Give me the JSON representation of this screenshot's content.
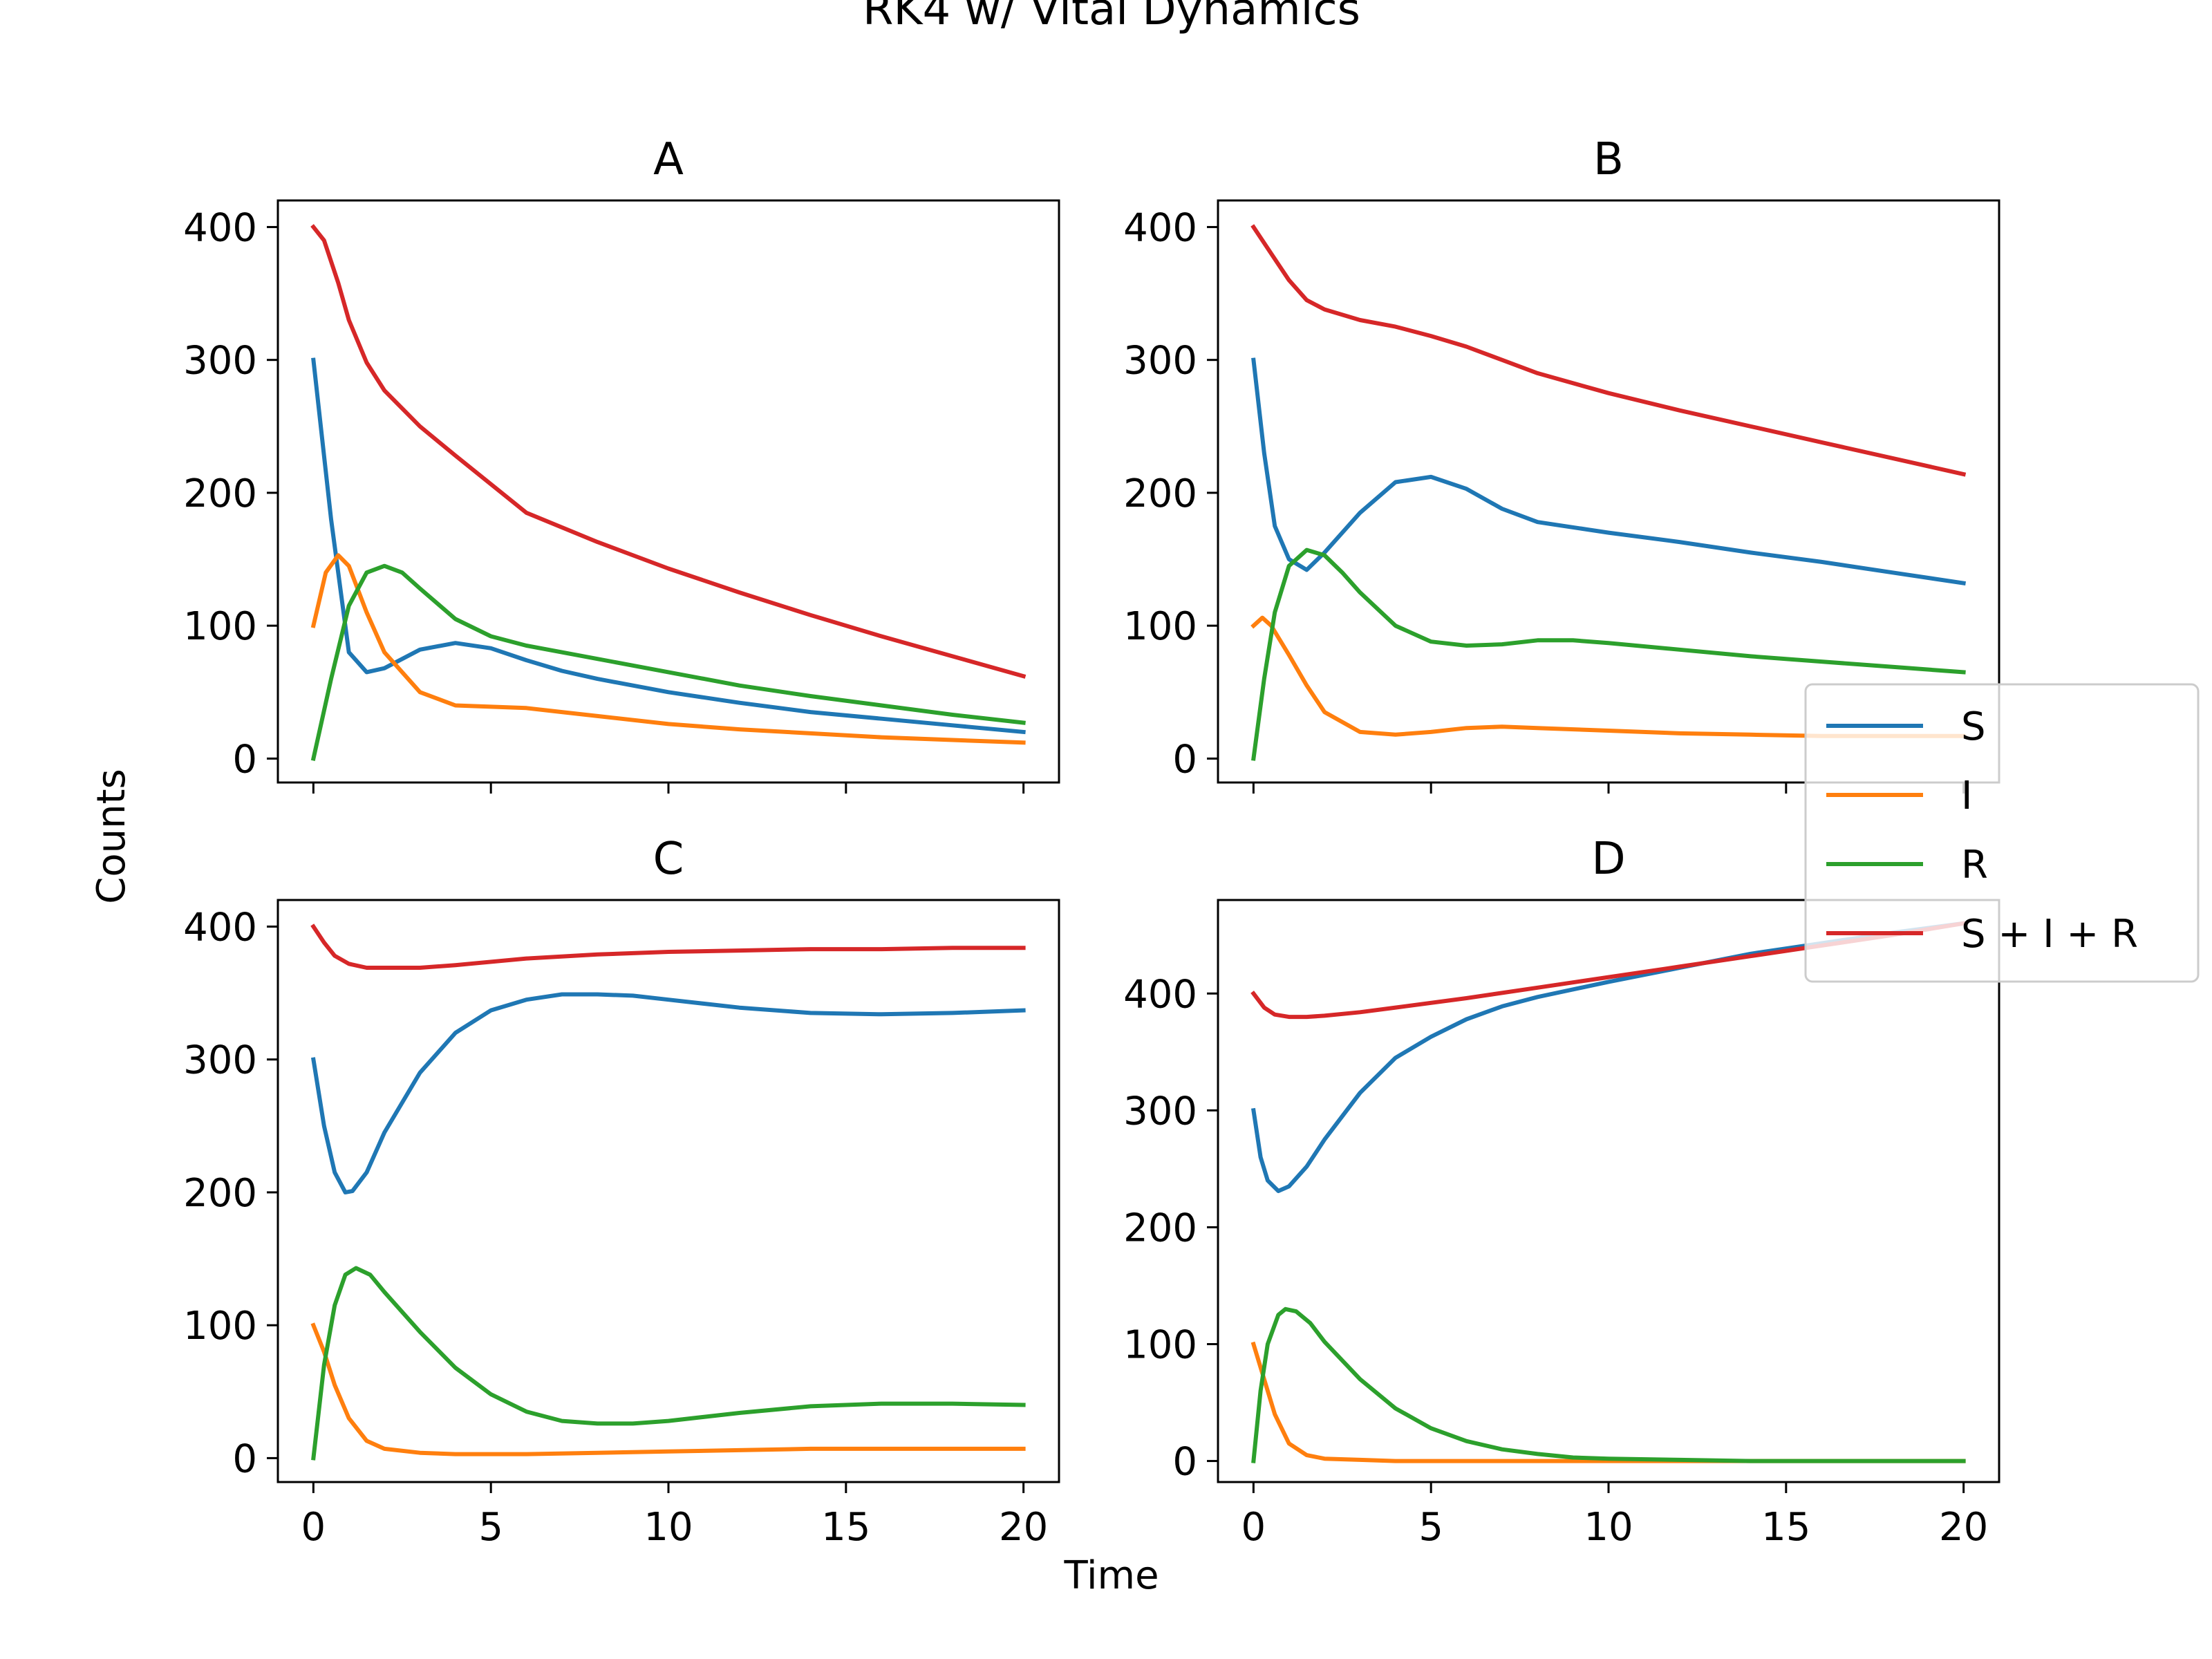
{
  "figure": {
    "title": "RK4 w/ Vital Dynamics",
    "xlabel": "Time",
    "ylabel": "Counts"
  },
  "colors": {
    "S": "#1f77b4",
    "I": "#ff7f0e",
    "R": "#2ca02c",
    "S + I + R": "#d62728"
  },
  "legend": {
    "placement": "right, overlapping panels B and D",
    "entries": [
      "S",
      "I",
      "R",
      "S + I + R"
    ]
  },
  "chart_data": [
    {
      "type": "line",
      "title": "A",
      "xlim": [
        -1,
        21
      ],
      "ylim": [
        -18,
        420
      ],
      "xticks": [
        0,
        5,
        10,
        15,
        20
      ],
      "yticks": [
        0,
        100,
        200,
        300,
        400
      ],
      "show_xticklabels": false,
      "grid": false,
      "series": [
        {
          "name": "S",
          "x": [
            0,
            0.5,
            1,
            1.5,
            2,
            3,
            4,
            5,
            6,
            7,
            8,
            10,
            12,
            14,
            16,
            18,
            20
          ],
          "y": [
            300,
            180,
            80,
            65,
            68,
            82,
            87,
            83,
            74,
            66,
            60,
            50,
            42,
            35,
            30,
            25,
            20
          ]
        },
        {
          "name": "I",
          "x": [
            0,
            0.35,
            0.7,
            1,
            1.5,
            2,
            3,
            4,
            5,
            6,
            7,
            8,
            10,
            12,
            14,
            16,
            18,
            20
          ],
          "y": [
            100,
            140,
            153,
            145,
            110,
            80,
            50,
            40,
            39,
            38,
            35,
            32,
            26,
            22,
            19,
            16,
            14,
            12
          ]
        },
        {
          "name": "R",
          "x": [
            0,
            0.5,
            1,
            1.5,
            2,
            2.5,
            3,
            4,
            5,
            6,
            8,
            10,
            12,
            14,
            16,
            18,
            20
          ],
          "y": [
            0,
            60,
            115,
            140,
            145,
            140,
            128,
            105,
            92,
            85,
            75,
            65,
            55,
            47,
            40,
            33,
            27
          ]
        },
        {
          "name": "S + I + R",
          "x": [
            0,
            0.3,
            0.7,
            1,
            1.5,
            2,
            3,
            4,
            6,
            8,
            10,
            12,
            14,
            16,
            18,
            20
          ],
          "y": [
            400,
            390,
            358,
            330,
            298,
            277,
            250,
            228,
            185,
            163,
            143,
            125,
            108,
            92,
            77,
            62
          ]
        }
      ]
    },
    {
      "type": "line",
      "title": "B",
      "xlim": [
        -1,
        21
      ],
      "ylim": [
        -18,
        420
      ],
      "xticks": [
        0,
        5,
        10,
        15,
        20
      ],
      "yticks": [
        0,
        100,
        200,
        300,
        400
      ],
      "show_xticklabels": false,
      "grid": false,
      "series": [
        {
          "name": "S",
          "x": [
            0,
            0.3,
            0.6,
            1,
            1.5,
            2,
            3,
            4,
            5,
            6,
            7,
            8,
            10,
            12,
            14,
            16,
            18,
            20
          ],
          "y": [
            300,
            230,
            175,
            150,
            142,
            155,
            185,
            208,
            212,
            203,
            188,
            178,
            170,
            163,
            155,
            148,
            140,
            132
          ]
        },
        {
          "name": "I",
          "x": [
            0,
            0.25,
            0.5,
            1,
            1.5,
            2,
            3,
            4,
            5,
            6,
            7,
            8,
            10,
            12,
            14,
            16,
            18,
            20
          ],
          "y": [
            100,
            106,
            100,
            78,
            55,
            35,
            20,
            18,
            20,
            23,
            24,
            23,
            21,
            19,
            18,
            17,
            17,
            17
          ]
        },
        {
          "name": "R",
          "x": [
            0,
            0.3,
            0.6,
            1,
            1.5,
            2,
            2.5,
            3,
            4,
            5,
            6,
            7,
            8,
            9,
            10,
            12,
            14,
            16,
            18,
            20
          ],
          "y": [
            0,
            60,
            110,
            145,
            157,
            153,
            140,
            125,
            100,
            88,
            85,
            86,
            89,
            89,
            87,
            82,
            77,
            73,
            69,
            65
          ]
        },
        {
          "name": "S + I + R",
          "x": [
            0,
            0.5,
            1,
            1.5,
            2,
            3,
            4,
            5,
            6,
            7,
            8,
            10,
            12,
            14,
            16,
            18,
            20
          ],
          "y": [
            400,
            380,
            360,
            345,
            338,
            330,
            325,
            318,
            310,
            300,
            290,
            275,
            262,
            250,
            238,
            226,
            214
          ]
        }
      ]
    },
    {
      "type": "line",
      "title": "C",
      "xlim": [
        -1,
        21
      ],
      "ylim": [
        -18,
        420
      ],
      "xticks": [
        0,
        5,
        10,
        15,
        20
      ],
      "yticks": [
        0,
        100,
        200,
        300,
        400
      ],
      "show_xticklabels": true,
      "grid": false,
      "series": [
        {
          "name": "S",
          "x": [
            0,
            0.3,
            0.6,
            0.9,
            1.1,
            1.5,
            2,
            3,
            4,
            5,
            6,
            7,
            8,
            9,
            10,
            12,
            14,
            16,
            18,
            20
          ],
          "y": [
            300,
            250,
            215,
            200,
            201,
            215,
            245,
            290,
            320,
            337,
            345,
            349,
            349,
            348,
            345,
            339,
            335,
            334,
            335,
            337
          ]
        },
        {
          "name": "I",
          "x": [
            0,
            0.3,
            0.6,
            1,
            1.5,
            2,
            3,
            4,
            6,
            8,
            10,
            12,
            14,
            16,
            18,
            20
          ],
          "y": [
            100,
            80,
            55,
            30,
            13,
            7,
            4,
            3,
            3,
            4,
            5,
            6,
            7,
            7,
            7,
            7
          ]
        },
        {
          "name": "R",
          "x": [
            0,
            0.3,
            0.6,
            0.9,
            1.2,
            1.6,
            2,
            3,
            4,
            5,
            6,
            7,
            8,
            9,
            10,
            12,
            14,
            16,
            18,
            20
          ],
          "y": [
            0,
            70,
            115,
            138,
            143,
            138,
            125,
            95,
            68,
            48,
            35,
            28,
            26,
            26,
            28,
            34,
            39,
            41,
            41,
            40
          ]
        },
        {
          "name": "S + I + R",
          "x": [
            0,
            0.3,
            0.6,
            1,
            1.5,
            2,
            3,
            4,
            6,
            8,
            10,
            12,
            14,
            16,
            18,
            20
          ],
          "y": [
            400,
            388,
            378,
            372,
            369,
            369,
            369,
            371,
            376,
            379,
            381,
            382,
            383,
            383,
            384,
            384
          ]
        }
      ]
    },
    {
      "type": "line",
      "title": "D",
      "xlim": [
        -1,
        21
      ],
      "ylim": [
        -18,
        480
      ],
      "xticks": [
        0,
        5,
        10,
        15,
        20
      ],
      "yticks": [
        0,
        100,
        200,
        300,
        400
      ],
      "show_xticklabels": true,
      "grid": false,
      "series": [
        {
          "name": "S",
          "x": [
            0,
            0.2,
            0.4,
            0.7,
            1,
            1.5,
            2,
            3,
            4,
            5,
            6,
            7,
            8,
            10,
            12,
            14,
            16,
            18,
            20
          ],
          "y": [
            300,
            260,
            240,
            231,
            235,
            252,
            275,
            315,
            345,
            363,
            378,
            389,
            397,
            410,
            422,
            434,
            443,
            452,
            460
          ]
        },
        {
          "name": "I",
          "x": [
            0,
            0.3,
            0.6,
            1,
            1.5,
            2,
            3,
            4,
            6,
            8,
            10,
            12,
            14,
            16,
            18,
            20
          ],
          "y": [
            100,
            70,
            40,
            15,
            5,
            2,
            1,
            0,
            0,
            0,
            0,
            0,
            0,
            0,
            0,
            0
          ]
        },
        {
          "name": "R",
          "x": [
            0,
            0.2,
            0.4,
            0.7,
            0.9,
            1.2,
            1.6,
            2,
            3,
            4,
            5,
            6,
            7,
            8,
            9,
            10,
            12,
            14,
            16,
            18,
            20
          ],
          "y": [
            0,
            60,
            100,
            125,
            130,
            128,
            118,
            102,
            70,
            45,
            28,
            17,
            10,
            6,
            3,
            2,
            1,
            0,
            0,
            0,
            0
          ]
        },
        {
          "name": "S + I + R",
          "x": [
            0,
            0.3,
            0.6,
            1,
            1.5,
            2,
            3,
            4,
            6,
            8,
            10,
            12,
            14,
            16,
            18,
            20
          ],
          "y": [
            400,
            388,
            382,
            380,
            380,
            381,
            384,
            388,
            396,
            405,
            414,
            423,
            432,
            441,
            450,
            460
          ]
        }
      ]
    }
  ]
}
